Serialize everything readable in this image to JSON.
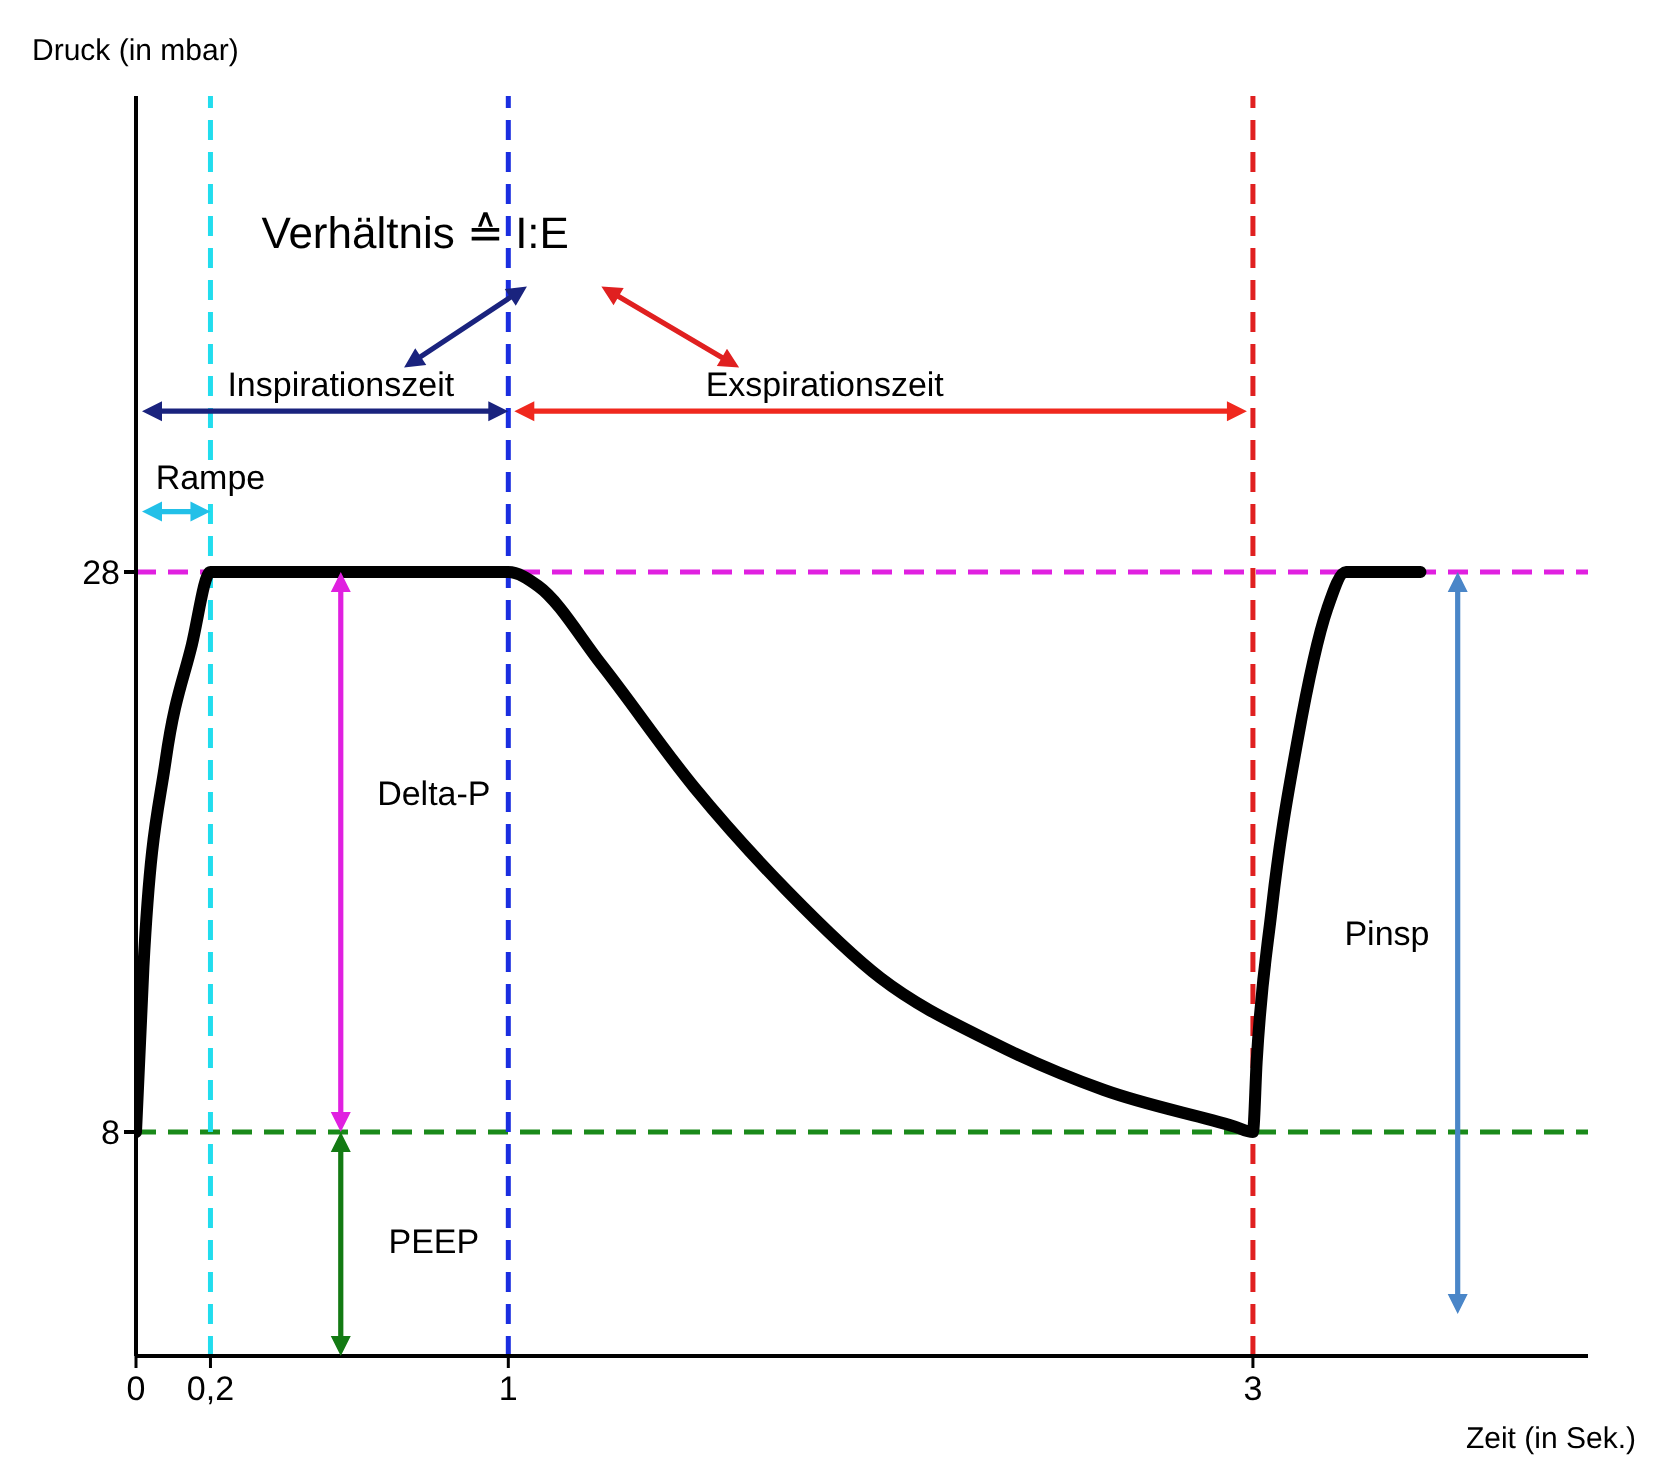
{
  "chart_data": {
    "type": "line",
    "xlabel": "Zeit (in Sek.)",
    "ylabel": "Druck (in mbar)",
    "x": [
      0,
      0.02,
      0.08,
      0.15,
      0.2,
      1,
      1.08,
      1.25,
      1.5,
      1.75,
      2,
      2.3,
      2.6,
      2.95,
      3,
      3.01,
      3.05,
      3.12,
      3.2,
      3.25,
      3.45
    ],
    "series": [
      {
        "color": "#000000",
        "values": [
          8,
          13.9,
          21.3,
          25.4,
          28,
          28,
          27.5,
          24.7,
          20.3,
          16.6,
          13.5,
          11.2,
          9.5,
          8.2,
          8,
          10.5,
          15.9,
          22,
          26.7,
          28,
          28
        ]
      }
    ],
    "xlim": [
      0,
      3.9
    ],
    "ylim": [
      0,
      45
    ],
    "xticks": [
      0,
      {
        "value": 0.2,
        "label": "0,2"
      },
      1,
      3
    ],
    "yticks": [
      8,
      28
    ],
    "marker": "none",
    "line_style": "solid",
    "ref_lines": [
      {
        "axis": "y",
        "value": 28,
        "color": "#e020e0",
        "line_style": "dashed"
      },
      {
        "axis": "y",
        "value": 8,
        "color": "#1a8a1a",
        "line_style": "dashed"
      },
      {
        "axis": "x",
        "value": 0.2,
        "color": "#22ddee",
        "line_style": "dashed"
      },
      {
        "axis": "x",
        "value": 1,
        "color": "#1a2ee0",
        "line_style": "dashed"
      },
      {
        "axis": "x",
        "value": 3,
        "color": "#e02020",
        "line_style": "dashed"
      }
    ],
    "annotations": [
      "Verhältnis ≙ I:E",
      "Inspirationszeit",
      "Exspirationszeit",
      "Rampe",
      "Delta-P",
      "PEEP",
      "Pinsp"
    ]
  }
}
